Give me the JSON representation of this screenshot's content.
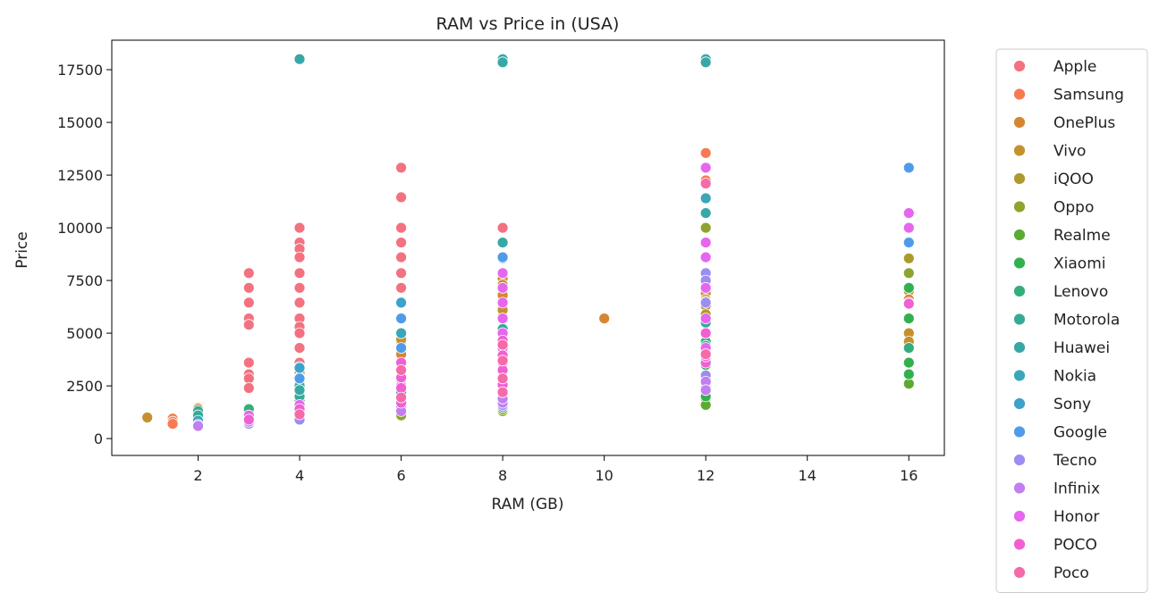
{
  "chart_data": {
    "type": "scatter",
    "title": "RAM vs Price in (USA)",
    "xlabel": "RAM (GB)",
    "ylabel": "Price",
    "xlim": [
      0.3,
      16.7
    ],
    "ylim": [
      -800,
      18900
    ],
    "x_ticks": [
      2,
      4,
      6,
      8,
      10,
      12,
      14,
      16
    ],
    "y_ticks": [
      0,
      2500,
      5000,
      7500,
      10000,
      12500,
      15000,
      17500
    ],
    "grid": false,
    "legend_position": "outside-right",
    "series": [
      {
        "name": "Apple",
        "color": "#f3727f",
        "points": [
          [
            3,
            7850
          ],
          [
            3,
            7150
          ],
          [
            3,
            6450
          ],
          [
            3,
            5700
          ],
          [
            3,
            5400
          ],
          [
            3,
            3600
          ],
          [
            3,
            3050
          ],
          [
            3,
            2850
          ],
          [
            3,
            2400
          ],
          [
            4,
            10000
          ],
          [
            4,
            9300
          ],
          [
            4,
            9000
          ],
          [
            4,
            8600
          ],
          [
            4,
            7850
          ],
          [
            4,
            7150
          ],
          [
            4,
            6450
          ],
          [
            4,
            5700
          ],
          [
            4,
            5300
          ],
          [
            4,
            5000
          ],
          [
            4,
            4300
          ],
          [
            4,
            3600
          ],
          [
            6,
            12850
          ],
          [
            6,
            11450
          ],
          [
            6,
            10000
          ],
          [
            6,
            9300
          ],
          [
            6,
            8600
          ],
          [
            6,
            7850
          ],
          [
            6,
            7150
          ],
          [
            6,
            6450
          ],
          [
            6,
            5700
          ],
          [
            6,
            5000
          ],
          [
            6,
            4300
          ],
          [
            6,
            3600
          ],
          [
            8,
            10000
          ],
          [
            8,
            2900
          ],
          [
            8,
            2150
          ]
        ]
      },
      {
        "name": "Samsung",
        "color": "#f77a50",
        "points": [
          [
            1.5,
            950
          ],
          [
            1.5,
            800
          ],
          [
            1.5,
            700
          ],
          [
            12,
            13550
          ],
          [
            12,
            12250
          ]
        ]
      },
      {
        "name": "OnePlus",
        "color": "#d68632",
        "points": [
          [
            2,
            1450
          ],
          [
            4,
            3300
          ],
          [
            4,
            3100
          ],
          [
            6,
            4600
          ],
          [
            6,
            4000
          ],
          [
            8,
            7600
          ],
          [
            8,
            6800
          ],
          [
            8,
            6200
          ],
          [
            8,
            5800
          ],
          [
            10,
            5700
          ],
          [
            12,
            6300
          ],
          [
            16,
            7000
          ],
          [
            16,
            6600
          ]
        ]
      },
      {
        "name": "Vivo",
        "color": "#c5912e",
        "points": [
          [
            1,
            1000
          ],
          [
            2,
            1400
          ],
          [
            4,
            2900
          ],
          [
            6,
            4700
          ],
          [
            8,
            7300
          ],
          [
            8,
            6400
          ],
          [
            8,
            6100
          ],
          [
            12,
            6900
          ],
          [
            12,
            6600
          ],
          [
            16,
            5000
          ],
          [
            16,
            4600
          ]
        ]
      },
      {
        "name": "iQOO",
        "color": "#ad9a2f",
        "points": [
          [
            12,
            6500
          ],
          [
            12,
            5900
          ],
          [
            16,
            8550
          ],
          [
            16,
            4300
          ]
        ]
      },
      {
        "name": "Oppo",
        "color": "#8fa32f",
        "points": [
          [
            2,
            1100
          ],
          [
            6,
            1100
          ],
          [
            8,
            1300
          ],
          [
            12,
            10000
          ],
          [
            12,
            7200
          ],
          [
            16,
            7850
          ]
        ]
      },
      {
        "name": "Realme",
        "color": "#5daa32",
        "points": [
          [
            2,
            1200
          ],
          [
            4,
            1500
          ],
          [
            8,
            1400
          ],
          [
            12,
            1900
          ],
          [
            12,
            1600
          ],
          [
            16,
            2600
          ]
        ]
      },
      {
        "name": "Xiaomi",
        "color": "#33b04e",
        "points": [
          [
            2,
            1000
          ],
          [
            3,
            1300
          ],
          [
            4,
            2200
          ],
          [
            4,
            1800
          ],
          [
            12,
            3500
          ],
          [
            12,
            2800
          ],
          [
            12,
            2400
          ],
          [
            12,
            2000
          ],
          [
            16,
            7150
          ],
          [
            16,
            5700
          ],
          [
            16,
            3600
          ],
          [
            16,
            3050
          ]
        ]
      },
      {
        "name": "Lenovo",
        "color": "#35ad7b",
        "points": [
          [
            3,
            1400
          ],
          [
            4,
            2600
          ],
          [
            12,
            4600
          ],
          [
            16,
            4300
          ]
        ]
      },
      {
        "name": "Motorola",
        "color": "#36aa95",
        "points": [
          [
            2,
            1300
          ],
          [
            2,
            1100
          ],
          [
            4,
            2500
          ],
          [
            4,
            2000
          ],
          [
            6,
            2200
          ],
          [
            8,
            5200
          ],
          [
            8,
            4200
          ],
          [
            12,
            5500
          ],
          [
            12,
            5000
          ],
          [
            12,
            4400
          ]
        ]
      },
      {
        "name": "Huawei",
        "color": "#38a8a7",
        "points": [
          [
            4,
            18000
          ],
          [
            8,
            18000
          ],
          [
            8,
            17850
          ],
          [
            12,
            18000
          ],
          [
            12,
            17850
          ],
          [
            12,
            10700
          ],
          [
            8,
            9300
          ],
          [
            4,
            2300
          ],
          [
            6,
            2800
          ]
        ]
      },
      {
        "name": "Nokia",
        "color": "#3aa6b8",
        "points": [
          [
            2,
            850
          ],
          [
            4,
            3400
          ],
          [
            6,
            5000
          ],
          [
            8,
            5700
          ],
          [
            8,
            3900
          ],
          [
            12,
            11400
          ]
        ]
      },
      {
        "name": "Sony",
        "color": "#3ca2cc",
        "points": [
          [
            6,
            6450
          ],
          [
            8,
            8550
          ],
          [
            4,
            3350
          ]
        ]
      },
      {
        "name": "Google",
        "color": "#4f9bea",
        "points": [
          [
            4,
            2850
          ],
          [
            6,
            5700
          ],
          [
            6,
            4300
          ],
          [
            8,
            5000
          ],
          [
            8,
            8600
          ],
          [
            16,
            12850
          ],
          [
            16,
            9300
          ]
        ]
      },
      {
        "name": "Tecno",
        "color": "#9b8df1",
        "points": [
          [
            2,
            650
          ],
          [
            3,
            700
          ],
          [
            4,
            1100
          ],
          [
            4,
            900
          ],
          [
            6,
            1500
          ],
          [
            8,
            1500
          ],
          [
            8,
            1600
          ],
          [
            12,
            7850
          ],
          [
            12,
            7500
          ],
          [
            12,
            6450
          ],
          [
            12,
            3000
          ]
        ]
      },
      {
        "name": "Infinix",
        "color": "#c17ff1",
        "points": [
          [
            2,
            600
          ],
          [
            3,
            800
          ],
          [
            4,
            1200
          ],
          [
            6,
            1300
          ],
          [
            8,
            1700
          ],
          [
            8,
            1900
          ],
          [
            12,
            2700
          ],
          [
            12,
            2300
          ]
        ]
      },
      {
        "name": "Honor",
        "color": "#e666ef",
        "points": [
          [
            3,
            1100
          ],
          [
            4,
            1600
          ],
          [
            6,
            2500
          ],
          [
            8,
            7850
          ],
          [
            8,
            7150
          ],
          [
            8,
            6450
          ],
          [
            8,
            5700
          ],
          [
            8,
            5000
          ],
          [
            8,
            4300
          ],
          [
            8,
            3600
          ],
          [
            12,
            12850
          ],
          [
            12,
            9300
          ],
          [
            12,
            8600
          ],
          [
            12,
            7150
          ],
          [
            12,
            5700
          ],
          [
            12,
            4300
          ],
          [
            16,
            10700
          ],
          [
            16,
            10000
          ],
          [
            16,
            6450
          ]
        ]
      },
      {
        "name": "POCO",
        "color": "#f15fd3",
        "points": [
          [
            3,
            900
          ],
          [
            4,
            1400
          ],
          [
            6,
            3600
          ],
          [
            6,
            2900
          ],
          [
            6,
            2400
          ],
          [
            6,
            1700
          ],
          [
            8,
            4650
          ],
          [
            8,
            3950
          ],
          [
            8,
            3250
          ],
          [
            8,
            2550
          ],
          [
            12,
            5000
          ],
          [
            12,
            3600
          ],
          [
            12,
            3900
          ],
          [
            16,
            6400
          ]
        ]
      },
      {
        "name": "Poco",
        "color": "#f56aa8",
        "points": [
          [
            4,
            1150
          ],
          [
            6,
            3250
          ],
          [
            6,
            1950
          ],
          [
            8,
            4450
          ],
          [
            8,
            3700
          ],
          [
            8,
            2850
          ],
          [
            8,
            2200
          ],
          [
            12,
            4000
          ],
          [
            12,
            12100
          ]
        ]
      }
    ]
  }
}
